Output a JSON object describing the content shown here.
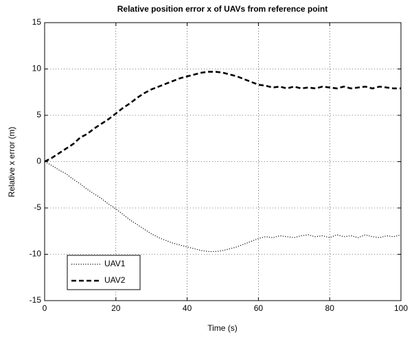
{
  "chart_data": {
    "type": "line",
    "title": "Relative position error x of UAVs from reference point",
    "xlabel": "Time (s)",
    "ylabel": "Relative x error (m)",
    "x": [
      0,
      2,
      4,
      6,
      8,
      10,
      12,
      14,
      16,
      18,
      20,
      22,
      24,
      26,
      28,
      30,
      32,
      34,
      36,
      38,
      40,
      42,
      44,
      46,
      48,
      50,
      52,
      54,
      56,
      58,
      60,
      62,
      64,
      66,
      68,
      70,
      72,
      74,
      76,
      78,
      80,
      82,
      84,
      86,
      88,
      90,
      92,
      94,
      96,
      98,
      100
    ],
    "series": [
      {
        "name": "UAV1",
        "color": "#000000",
        "linestyle": "dotted",
        "values": [
          0,
          -0.4,
          -0.9,
          -1.3,
          -1.9,
          -2.4,
          -3.0,
          -3.5,
          -4.0,
          -4.6,
          -5.1,
          -5.7,
          -6.3,
          -6.8,
          -7.3,
          -7.8,
          -8.2,
          -8.5,
          -8.8,
          -9.0,
          -9.2,
          -9.4,
          -9.6,
          -9.7,
          -9.7,
          -9.6,
          -9.4,
          -9.2,
          -8.9,
          -8.6,
          -8.3,
          -8.1,
          -8.2,
          -8.0,
          -8.1,
          -8.2,
          -8.0,
          -7.9,
          -8.1,
          -8.0,
          -8.2,
          -7.9,
          -8.1,
          -8.0,
          -8.2,
          -7.9,
          -8.1,
          -8.2,
          -8.0,
          -8.1,
          -7.9
        ]
      },
      {
        "name": "UAV2",
        "color": "#000000",
        "linestyle": "dashed",
        "values": [
          0,
          0.4,
          0.9,
          1.4,
          1.9,
          2.6,
          3.0,
          3.6,
          4.1,
          4.6,
          5.2,
          5.8,
          6.3,
          6.9,
          7.4,
          7.8,
          8.1,
          8.4,
          8.7,
          9.0,
          9.2,
          9.4,
          9.6,
          9.7,
          9.7,
          9.6,
          9.4,
          9.2,
          8.9,
          8.6,
          8.3,
          8.2,
          8.0,
          8.1,
          7.9,
          8.1,
          7.9,
          8.0,
          7.9,
          8.1,
          8.0,
          7.9,
          8.1,
          7.9,
          8.0,
          8.1,
          7.9,
          8.1,
          8.0,
          7.9,
          7.9
        ]
      }
    ],
    "xlim": [
      0,
      100
    ],
    "xticks": [
      0,
      20,
      40,
      60,
      80,
      100
    ],
    "ylim": [
      -15,
      15
    ],
    "yticks": [
      -15,
      -10,
      -5,
      0,
      5,
      10,
      15
    ],
    "grid": true,
    "legend": "lower left"
  }
}
